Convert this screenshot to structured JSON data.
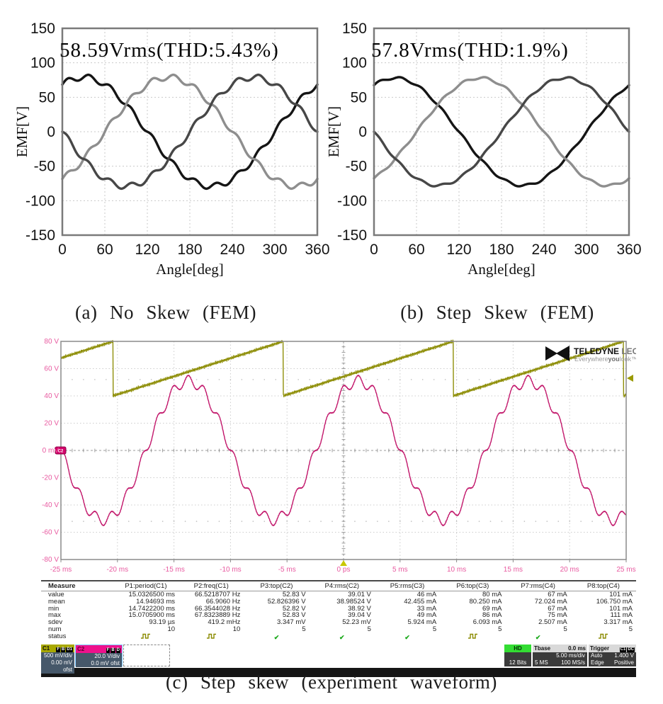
{
  "captions": {
    "a": "(a) No Skew (FEM)",
    "b": "(b) Step Skew (FEM)",
    "c": "(c) Step skew (experiment waveform)"
  },
  "chart_data": [
    {
      "type": "line",
      "name": "fem-no-skew",
      "title_annotation": "58.59Vrms(THD:5.43%)",
      "xlabel": "Angle[deg]",
      "ylabel": "EMF[V]",
      "xlim": [
        0,
        360
      ],
      "ylim": [
        -150,
        150
      ],
      "xticks": [
        0,
        60,
        120,
        180,
        240,
        300,
        360
      ],
      "yticks": [
        150,
        100,
        50,
        0,
        -50,
        -100,
        -150
      ],
      "grid": true,
      "series": [
        {
          "name": "phase-A",
          "color": "#151515",
          "amplitude": 79,
          "phase_deg": 30,
          "ripple_amp": 4.2,
          "ripple_order": 12
        },
        {
          "name": "phase-B",
          "color": "#8e8e8e",
          "amplitude": 79,
          "phase_deg": 150,
          "ripple_amp": 4.2,
          "ripple_order": 12
        },
        {
          "name": "phase-C",
          "color": "#474747",
          "amplitude": 79,
          "phase_deg": 270,
          "ripple_amp": 4.2,
          "ripple_order": 12
        }
      ]
    },
    {
      "type": "line",
      "name": "fem-step-skew",
      "title_annotation": "57.8Vrms(THD:1.9%)",
      "xlabel": "Angle[deg]",
      "ylabel": "EMF[V]",
      "xlim": [
        0,
        360
      ],
      "ylim": [
        -150,
        150
      ],
      "xticks": [
        0,
        60,
        120,
        180,
        240,
        300,
        360
      ],
      "yticks": [
        150,
        100,
        50,
        0,
        -50,
        -100,
        -150
      ],
      "grid": true,
      "series": [
        {
          "name": "phase-A",
          "color": "#151515",
          "amplitude": 78,
          "phase_deg": 30,
          "ripple_amp": 1.7,
          "ripple_order": 12
        },
        {
          "name": "phase-B",
          "color": "#8e8e8e",
          "amplitude": 78,
          "phase_deg": 150,
          "ripple_amp": 1.7,
          "ripple_order": 12
        },
        {
          "name": "phase-C",
          "color": "#474747",
          "amplitude": 78,
          "phase_deg": 270,
          "ripple_amp": 1.7,
          "ripple_order": 12
        }
      ]
    },
    {
      "type": "line",
      "name": "oscilloscope-step-skew-experiment",
      "xlim_ms": [
        -25,
        25
      ],
      "ylim_v": [
        -80,
        80
      ],
      "xticks": [
        {
          "t": -25,
          "label": "-25 ms"
        },
        {
          "t": -20,
          "label": "-20 ms"
        },
        {
          "t": -15,
          "label": "-15 ms"
        },
        {
          "t": -10,
          "label": "-10 ms"
        },
        {
          "t": -5,
          "label": "-5 ms"
        },
        {
          "t": 0,
          "label": "0 ps"
        },
        {
          "t": 5,
          "label": "5 ms"
        },
        {
          "t": 10,
          "label": "10 ms"
        },
        {
          "t": 15,
          "label": "15 ms"
        },
        {
          "t": 20,
          "label": "20 ms"
        },
        {
          "t": 25,
          "label": "25 ms"
        }
      ],
      "yticks": [
        {
          "v": 80,
          "label": "80 V"
        },
        {
          "v": 60,
          "label": "60 V"
        },
        {
          "v": 40,
          "label": "40 V"
        },
        {
          "v": 20,
          "label": "20 V"
        },
        {
          "v": 0,
          "label": "0 mV"
        },
        {
          "v": -20,
          "label": "-20 V"
        },
        {
          "v": -40,
          "label": "-40 V"
        },
        {
          "v": -60,
          "label": "-60 V"
        },
        {
          "v": -80,
          "label": "-80 V"
        }
      ],
      "dot_rows_v": [
        52,
        -52
      ],
      "series": [
        {
          "name": "C1-sawtooth",
          "color": "#8f8f0a",
          "shape": "sawtooth",
          "period_ms": 15.05,
          "reset_at_ms": -20.4,
          "min_v": 40,
          "max_v": 80
        },
        {
          "name": "C2-emf-sine",
          "color": "#c2176b",
          "shape": "sine",
          "amplitude_v": 51,
          "harmonic_amp_v": 4,
          "harmonic_order": 11,
          "period_ms": 15.03,
          "peak_at_ms": 1.3
        }
      ],
      "trigger_level_marker_v": 53,
      "c2_zero_marker_v": 0
    }
  ],
  "scope": {
    "logo": {
      "brand_bold": "TELEDYNE",
      "brand_light": " LECROY",
      "tagline_1": "Everywhere",
      "tagline_2": "you",
      "tagline_3": "look™"
    },
    "measure": {
      "row_labels": [
        "Measure",
        "value",
        "mean",
        "min",
        "max",
        "sdev",
        "num",
        "status"
      ],
      "columns": [
        {
          "header": "P1:period(C1)",
          "value": "15.0326500 ms",
          "mean": "14.94693 ms",
          "min": "14.7422200 ms",
          "max": "15.0705900 ms",
          "sdev": "93.19 µs",
          "num": "10",
          "status": "pulse"
        },
        {
          "header": "P2:freq(C1)",
          "value": "66.5218707 Hz",
          "mean": "66.9060 Hz",
          "min": "66.3544028 Hz",
          "max": "67.8323889 Hz",
          "sdev": "419.2 mHz",
          "num": "10",
          "status": "pulse"
        },
        {
          "header": "P3:top(C2)",
          "value": "52.83 V",
          "mean": "52.826396 V",
          "min": "52.82 V",
          "max": "52.83 V",
          "sdev": "3.347 mV",
          "num": "5",
          "status": "check"
        },
        {
          "header": "P4:rms(C2)",
          "value": "39.01 V",
          "mean": "38.98524 V",
          "min": "38.92 V",
          "max": "39.04 V",
          "sdev": "52.23 mV",
          "num": "5",
          "status": "check"
        },
        {
          "header": "P5:rms(C3)",
          "value": "46 mA",
          "mean": "42.455 mA",
          "min": "33 mA",
          "max": "49 mA",
          "sdev": "5.924 mA",
          "num": "5",
          "status": "check"
        },
        {
          "header": "P6:top(C3)",
          "value": "80 mA",
          "mean": "80.250 mA",
          "min": "69 mA",
          "max": "86 mA",
          "sdev": "6.093 mA",
          "num": "5",
          "status": "pulse"
        },
        {
          "header": "P7:rms(C4)",
          "value": "67 mA",
          "mean": "72.024 mA",
          "min": "67 mA",
          "max": "75 mA",
          "sdev": "2.507 mA",
          "num": "5",
          "status": "check"
        },
        {
          "header": "P8:top(C4)",
          "value": "101 mA",
          "mean": "106.750 mA",
          "min": "101 mA",
          "max": "111 mA",
          "sdev": "3.317 mA",
          "num": "5",
          "status": "pulse"
        }
      ]
    },
    "channels": [
      {
        "id": "C1",
        "vdiv": "500 mV/div",
        "ofst": "0.00 mV ofst",
        "badges": [
          "F",
          "B",
          "D1"
        ],
        "hdr_bg": "#a8a800",
        "hdr_fg": "#111111"
      },
      {
        "id": "C2",
        "vdiv": "20.0 V/div",
        "ofst": "0.0 mV ofst",
        "badges": [
          "F",
          "B",
          "D"
        ],
        "hdr_bg": "#ee118c",
        "hdr_fg": "#5c0030"
      }
    ],
    "hd": {
      "label": "HD",
      "bits": "12 Bits"
    },
    "tbase": {
      "title": "Tbase",
      "value": "0.0 ms",
      "perdiv": "5.00 ms/div",
      "samples": "5 MS",
      "rate": "100 MS/s"
    },
    "trigger": {
      "title": "Trigger",
      "badges": [
        "C1",
        "DC"
      ],
      "mode": "Auto",
      "level": "1.400 V",
      "type": "Edge",
      "slope": "Positive"
    }
  }
}
